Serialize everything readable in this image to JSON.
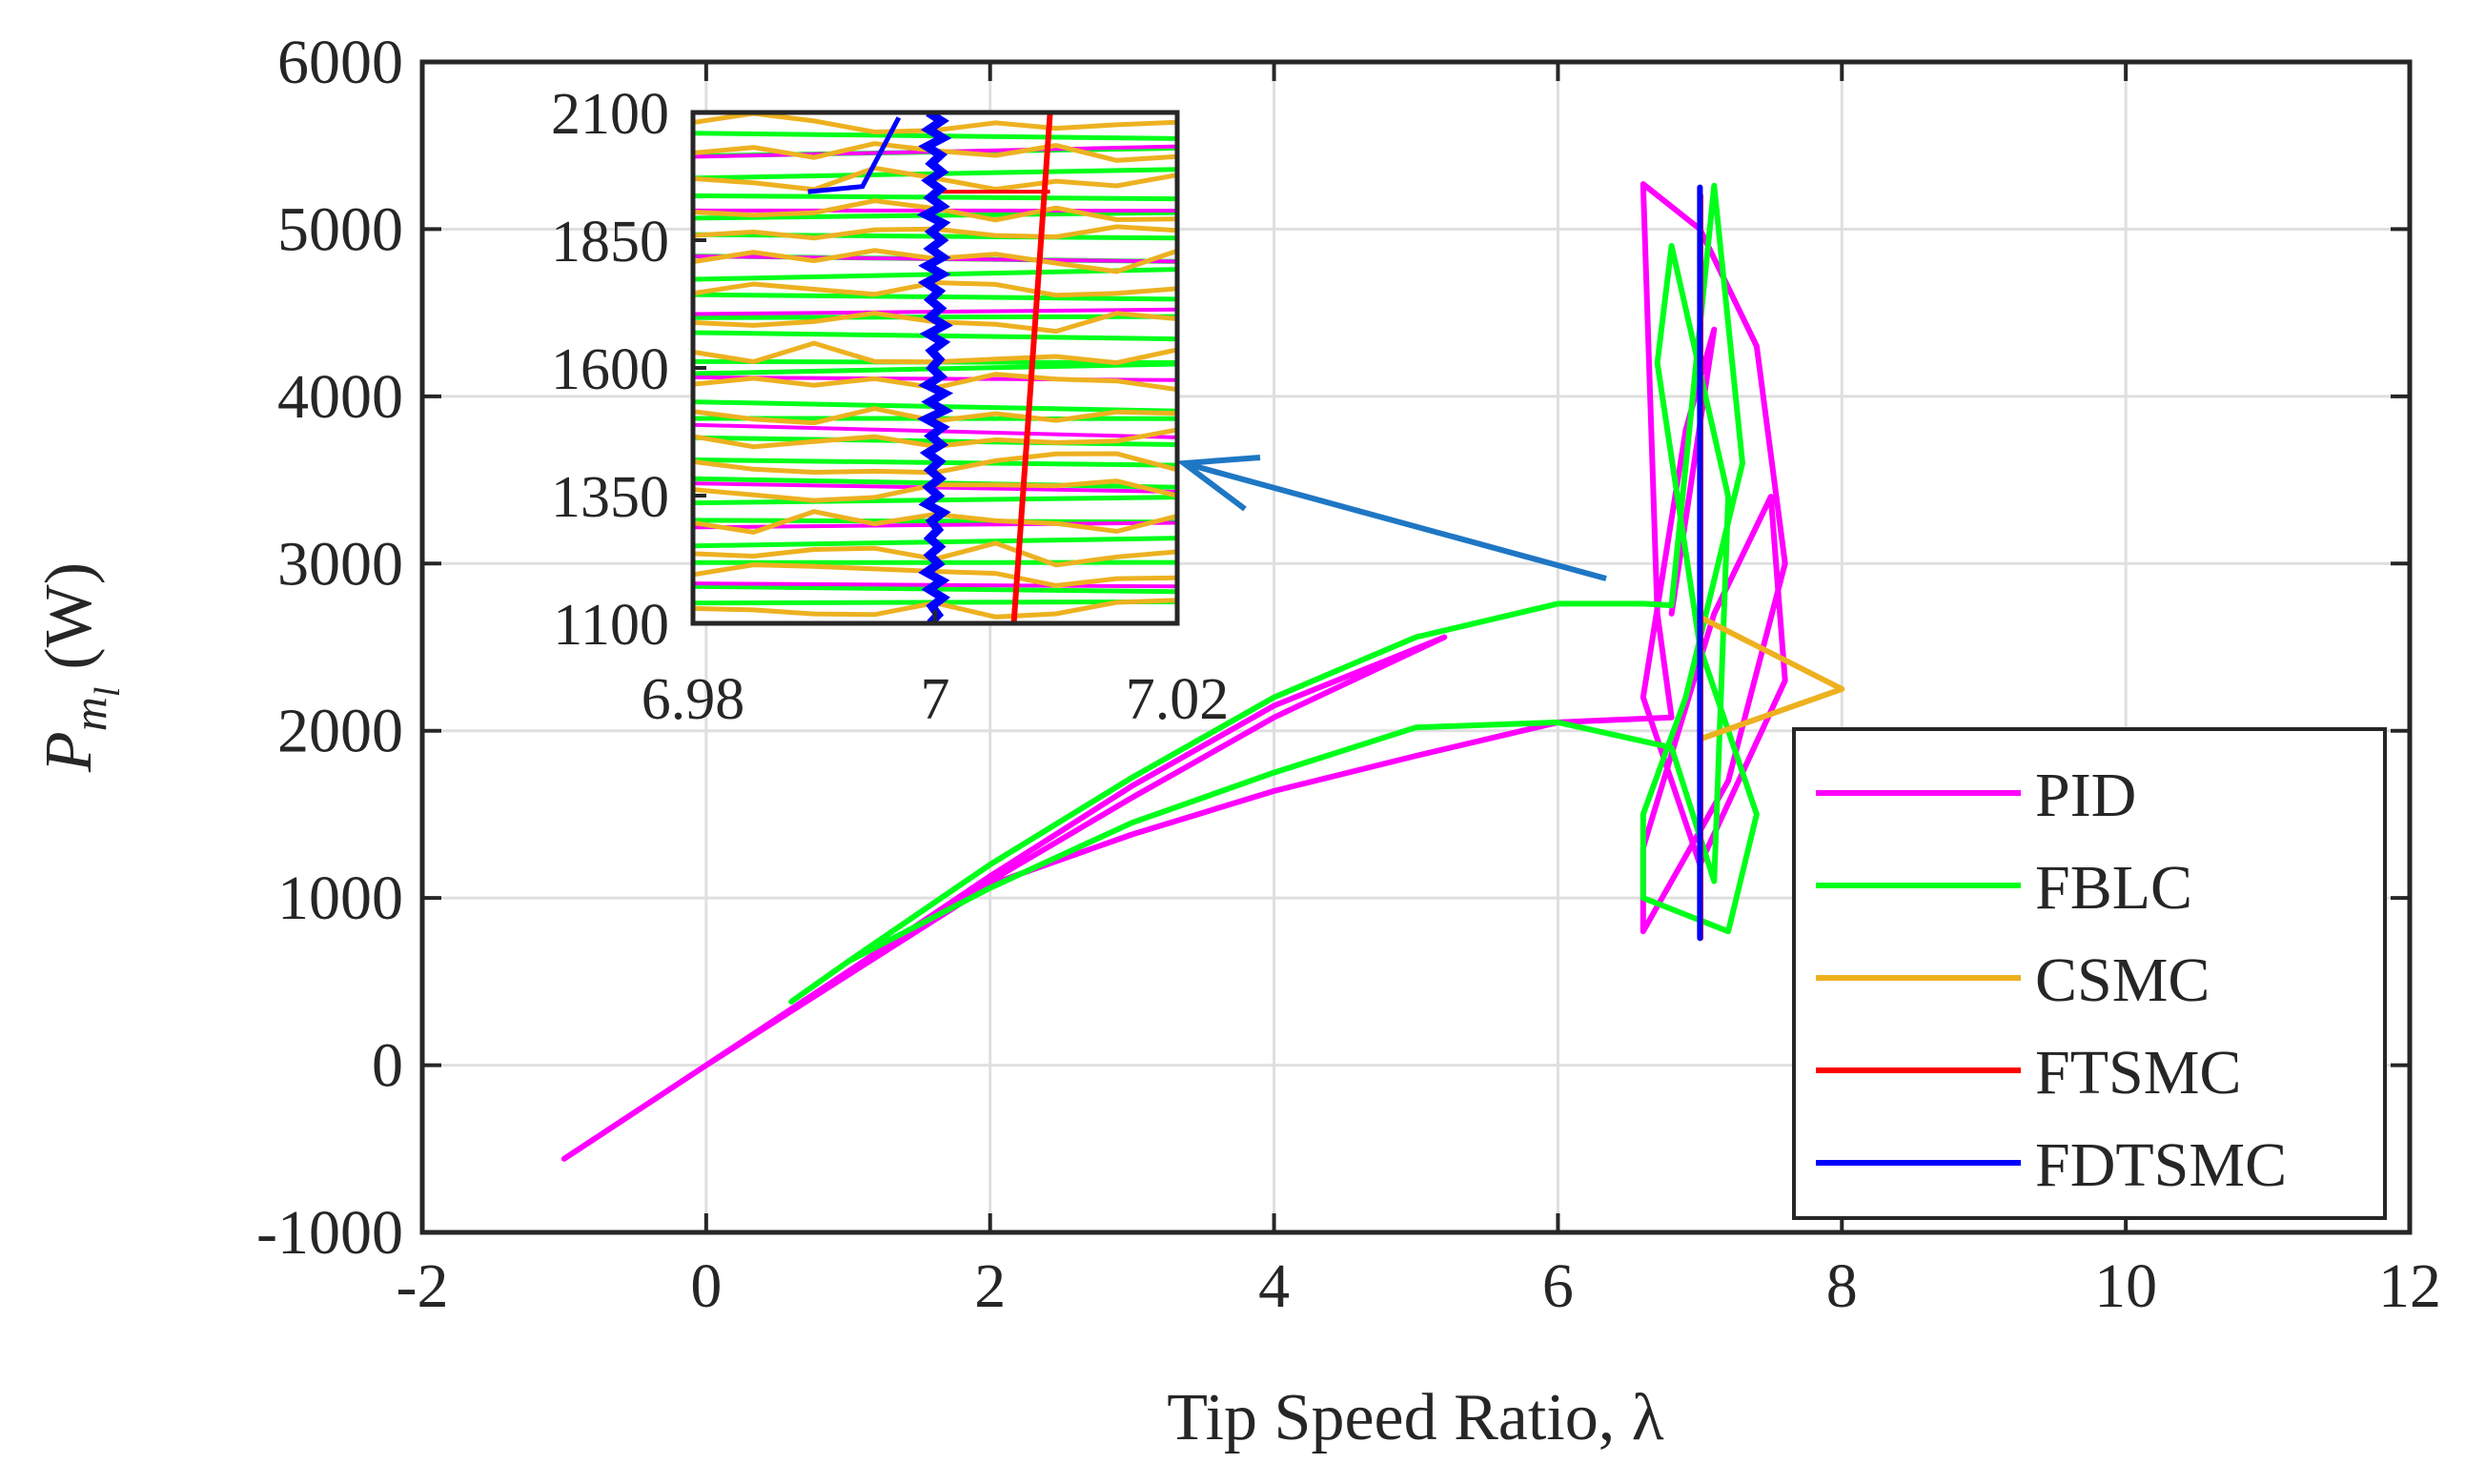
{
  "chart_data": {
    "type": "line",
    "title": "",
    "xlabel": "Tip Speed Ratio, λ",
    "ylabel_main": "P",
    "ylabel_sub": "m",
    "ylabel_subsub": "l",
    "ylabel_unit": "(W)",
    "xlim": [
      -2,
      12
    ],
    "ylim": [
      -1000,
      6000
    ],
    "xticks": [
      -2,
      0,
      2,
      4,
      6,
      8,
      10,
      12
    ],
    "yticks": [
      -1000,
      0,
      1000,
      2000,
      3000,
      4000,
      5000,
      6000
    ],
    "xtick_labels": [
      "-2",
      "0",
      "2",
      "4",
      "6",
      "8",
      "10",
      "12"
    ],
    "ytick_labels": [
      "-1000",
      "0",
      "1000",
      "2000",
      "3000",
      "4000",
      "5000",
      "6000"
    ],
    "grid": true,
    "legend_position": "bottom-right",
    "series": [
      {
        "name": "PID",
        "color": "#ff00ff",
        "x": [
          -1.0,
          0.0,
          1.0,
          2.0,
          3.0,
          4.0,
          5.2,
          4.8,
          4.0,
          3.0,
          2.0,
          1.0,
          0.5,
          0.0,
          1.0,
          2.0,
          3.0,
          4.0,
          5.0,
          6.0,
          6.8,
          6.7,
          6.6,
          7.0,
          7.4,
          7.6,
          7.2,
          6.6,
          6.6,
          7.1,
          7.5,
          7.6,
          7.0,
          6.6,
          6.9,
          7.1,
          6.8
        ],
        "y": [
          -560,
          0,
          560,
          1130,
          1670,
          2150,
          2560,
          2400,
          2080,
          1600,
          1100,
          550,
          280,
          0,
          540,
          1080,
          1380,
          1640,
          1850,
          2050,
          2080,
          2700,
          5270,
          5000,
          4300,
          3000,
          1700,
          800,
          1300,
          2700,
          3400,
          2300,
          1200,
          2200,
          3800,
          4400,
          2700
        ]
      },
      {
        "name": "FBLC",
        "color": "#00ff1a",
        "x": [
          0.6,
          1.0,
          2.0,
          3.0,
          4.0,
          5.0,
          6.0,
          6.6,
          6.8,
          7.1,
          7.3,
          6.9,
          6.6,
          6.6,
          7.2,
          7.4,
          7.0,
          6.7,
          6.8,
          7.2,
          7.1,
          6.8,
          6.0,
          5.0,
          4.0,
          3.0,
          2.0,
          1.0,
          0.6
        ],
        "y": [
          380,
          620,
          1200,
          1720,
          2200,
          2560,
          2760,
          2760,
          2750,
          5260,
          3600,
          2200,
          1500,
          1000,
          800,
          1500,
          2500,
          4200,
          4900,
          3400,
          1100,
          1900,
          2050,
          2020,
          1750,
          1450,
          1060,
          620,
          380
        ]
      },
      {
        "name": "CSMC",
        "color": "#edb120",
        "x": [
          7.0,
          7.0,
          7.0,
          8.0,
          7.0,
          7.0,
          7.0
        ],
        "y": [
          760,
          2700,
          2680,
          2250,
          1950,
          5250,
          760
        ]
      },
      {
        "name": "FTSMC",
        "color": "#ff0000",
        "x": [
          7.004,
          7.004
        ],
        "y": [
          760,
          5200
        ]
      },
      {
        "name": "FDTSMC",
        "color": "#0000ff",
        "x": [
          7.0,
          7.0
        ],
        "y": [
          760,
          5250
        ]
      }
    ],
    "inset": {
      "xlim": [
        6.98,
        7.02
      ],
      "ylim": [
        1100,
        2100
      ],
      "xticks": [
        6.98,
        7.0,
        7.02
      ],
      "yticks": [
        1100,
        1350,
        1600,
        1850,
        2100
      ],
      "xtick_labels": [
        "6.98",
        "7",
        "7.02"
      ],
      "ytick_labels": [
        "1100",
        "1350",
        "1600",
        "1850",
        "2100"
      ],
      "ftsmc_line": {
        "x": [
          7.0065,
          7.0095
        ],
        "y": [
          1100,
          2100
        ]
      },
      "fdtsmc_x": 7.0,
      "fdtsmc_hook": {
        "x": [
          6.9895,
          6.994,
          6.997
        ],
        "y": [
          1945,
          1955,
          2090
        ]
      }
    },
    "annotation": {
      "type": "arrow",
      "color": "#1f77c4"
    }
  }
}
